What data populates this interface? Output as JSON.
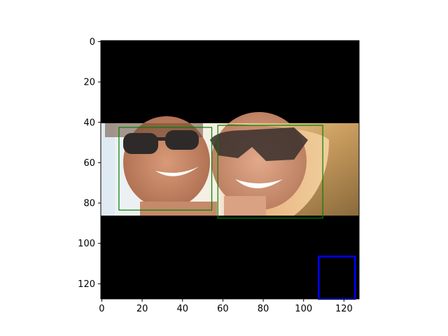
{
  "chart_data": {
    "type": "image",
    "x_ticks": [
      0,
      20,
      40,
      60,
      80,
      100,
      120
    ],
    "y_ticks": [
      0,
      20,
      40,
      60,
      80,
      100,
      120
    ],
    "xlim": [
      -0.5,
      127.5
    ],
    "ylim": [
      127.5,
      -0.5
    ],
    "image_size": [
      128,
      128
    ],
    "photo_band": {
      "y_start": 40,
      "y_end": 86,
      "description_colors": [
        "#f1e7de",
        "#c58a63",
        "#3a2a22"
      ]
    },
    "boxes": [
      {
        "label": "",
        "x_min": 8.5,
        "y_min": 42.5,
        "x_max": 54.5,
        "y_max": 83.5,
        "color": "#008000"
      },
      {
        "label": "",
        "x_min": 57.5,
        "y_min": 41.5,
        "x_max": 109.5,
        "y_max": 87.5,
        "color": "#008000"
      },
      {
        "label": "",
        "x_min": 107.5,
        "y_min": 106.5,
        "x_max": 125.5,
        "y_max": 130,
        "color": "#0000ff"
      }
    ]
  }
}
